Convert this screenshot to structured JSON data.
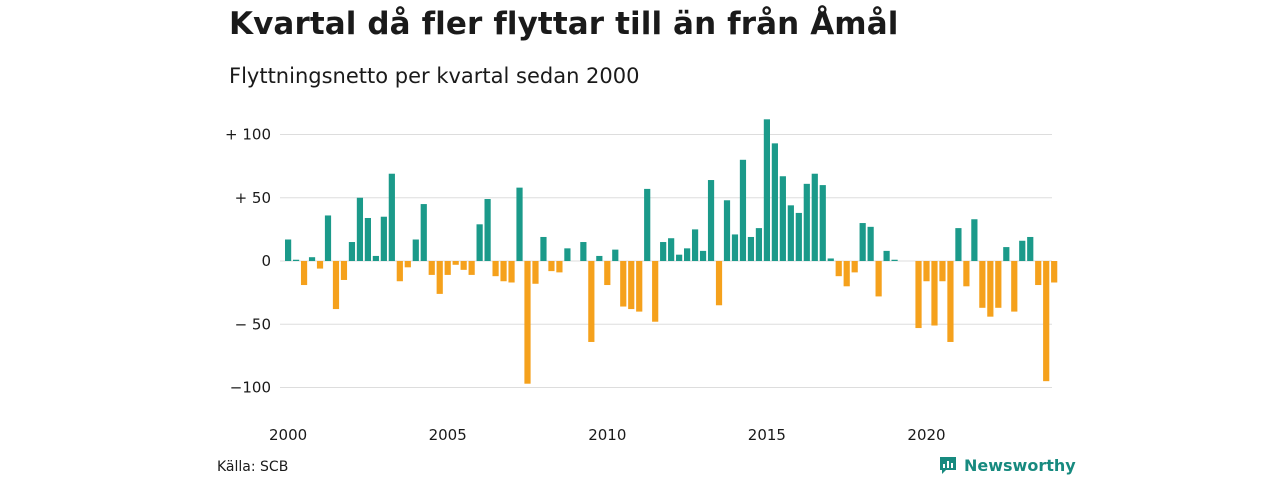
{
  "header": {
    "title": "Kvartal då fler flyttar till än från Åmål",
    "subtitle": "Flyttningsnetto per kvartal sedan 2000"
  },
  "footer": {
    "source": "Källa: SCB",
    "brand": "Newsworthy"
  },
  "colors": {
    "positive": "#1b9a8a",
    "negative": "#f5a11c",
    "grid": "#dddddd",
    "brand": "#178a7f"
  },
  "icons": {
    "brand_logo": "newsworthy-logo-icon"
  },
  "chart_data": {
    "type": "bar",
    "title": "Kvartal då fler flyttar till än från Åmål",
    "subtitle": "Flyttningsnetto per kvartal sedan 2000",
    "ylim": [
      -100,
      100
    ],
    "y_ticks": [
      {
        "value": 100,
        "label": "+ 100"
      },
      {
        "value": 50,
        "label": "+  50"
      },
      {
        "value": 0,
        "label": "0"
      },
      {
        "value": -50,
        "label": "− 50"
      },
      {
        "value": -100,
        "label": "−100"
      }
    ],
    "x_ticks": [
      "2000",
      "2005",
      "2010",
      "2015",
      "2020"
    ],
    "grid": true,
    "categories": [
      "2000 Q1",
      "2000 Q2",
      "2000 Q3",
      "2000 Q4",
      "2001 Q1",
      "2001 Q2",
      "2001 Q3",
      "2001 Q4",
      "2002 Q1",
      "2002 Q2",
      "2002 Q3",
      "2002 Q4",
      "2003 Q1",
      "2003 Q2",
      "2003 Q3",
      "2003 Q4",
      "2004 Q1",
      "2004 Q2",
      "2004 Q3",
      "2004 Q4",
      "2005 Q1",
      "2005 Q2",
      "2005 Q3",
      "2005 Q4",
      "2006 Q1",
      "2006 Q2",
      "2006 Q3",
      "2006 Q4",
      "2007 Q1",
      "2007 Q2",
      "2007 Q3",
      "2007 Q4",
      "2008 Q1",
      "2008 Q2",
      "2008 Q3",
      "2008 Q4",
      "2009 Q1",
      "2009 Q2",
      "2009 Q3",
      "2009 Q4",
      "2010 Q1",
      "2010 Q2",
      "2010 Q3",
      "2010 Q4",
      "2011 Q1",
      "2011 Q2",
      "2011 Q3",
      "2011 Q4",
      "2012 Q1",
      "2012 Q2",
      "2012 Q3",
      "2012 Q4",
      "2013 Q1",
      "2013 Q2",
      "2013 Q3",
      "2013 Q4",
      "2014 Q1",
      "2014 Q2",
      "2014 Q3",
      "2014 Q4",
      "2015 Q1",
      "2015 Q2",
      "2015 Q3",
      "2015 Q4",
      "2016 Q1",
      "2016 Q2",
      "2016 Q3",
      "2016 Q4",
      "2017 Q1",
      "2017 Q2",
      "2017 Q3",
      "2017 Q4",
      "2018 Q1",
      "2018 Q2",
      "2018 Q3",
      "2018 Q4",
      "2019 Q1",
      "2019 Q2",
      "2019 Q3",
      "2019 Q4",
      "2020 Q1",
      "2020 Q2",
      "2020 Q3",
      "2020 Q4",
      "2021 Q1",
      "2021 Q2",
      "2021 Q3",
      "2021 Q4",
      "2022 Q1",
      "2022 Q2",
      "2022 Q3",
      "2022 Q4",
      "2023 Q1",
      "2023 Q2",
      "2023 Q3",
      "2023 Q4",
      "2024 Q1"
    ],
    "values": [
      17,
      1,
      -19,
      3,
      -6,
      36,
      -38,
      -15,
      15,
      50,
      34,
      4,
      35,
      69,
      -16,
      -5,
      17,
      45,
      -11,
      -26,
      -11,
      -3,
      -7,
      -11,
      29,
      49,
      -12,
      -16,
      -17,
      58,
      -97,
      -18,
      19,
      -8,
      -9,
      10,
      0,
      15,
      -64,
      4,
      -19,
      9,
      -36,
      -38,
      -40,
      57,
      -48,
      15,
      18,
      5,
      10,
      25,
      8,
      64,
      -35,
      48,
      21,
      80,
      19,
      26,
      112,
      93,
      67,
      44,
      38,
      61,
      69,
      60,
      2,
      -12,
      -20,
      -9,
      30,
      27,
      -28,
      8,
      1,
      0,
      0,
      -53,
      -16,
      -51,
      -16,
      -64,
      26,
      -20,
      33,
      -37,
      -44,
      -37,
      11,
      -40,
      16,
      19,
      -19,
      -95,
      -17
    ]
  }
}
